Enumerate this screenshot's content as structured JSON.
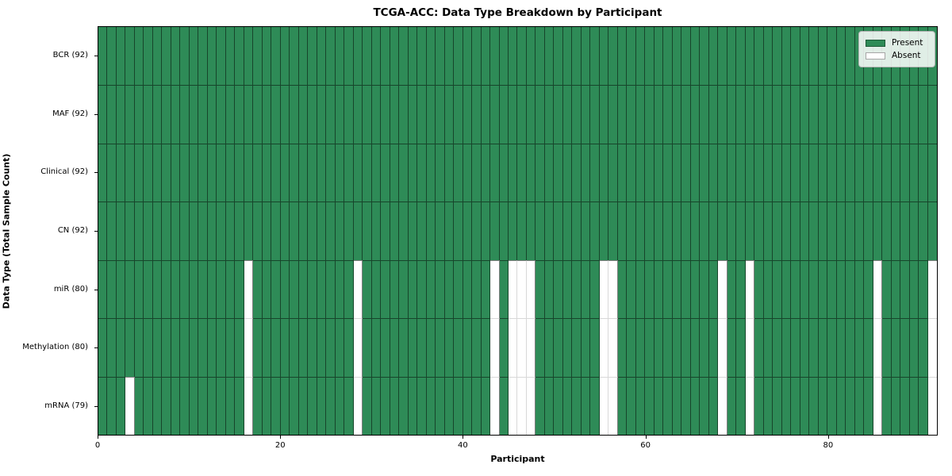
{
  "chart_data": {
    "type": "heatmap",
    "title": "TCGA-ACC: Data Type Breakdown by Participant",
    "xlabel": "Participant",
    "ylabel": "Data Type (Total Sample Count)",
    "n_participants": 92,
    "x_range": [
      0,
      92
    ],
    "x_ticks": [
      0,
      20,
      40,
      60,
      80
    ],
    "grid": true,
    "legend_position": "upper right",
    "legend": [
      {
        "label": "Present",
        "color": "#2e8b57"
      },
      {
        "label": "Absent",
        "color": "#ffffff"
      }
    ],
    "colors": {
      "present": "#2e8b57",
      "absent": "#ffffff",
      "grid_dark": "rgba(0,0,0,0.5)",
      "grid_light": "#d8d8d8"
    },
    "rows": [
      {
        "label": "BCR (92)",
        "present_count": 92,
        "absent_columns": []
      },
      {
        "label": "MAF (92)",
        "present_count": 92,
        "absent_columns": []
      },
      {
        "label": "Clinical (92)",
        "present_count": 92,
        "absent_columns": []
      },
      {
        "label": "CN (92)",
        "present_count": 92,
        "absent_columns": []
      },
      {
        "label": "miR (80)",
        "present_count": 80,
        "absent_columns": [
          16,
          28,
          43,
          45,
          46,
          47,
          55,
          56,
          68,
          71,
          85,
          91
        ]
      },
      {
        "label": "Methylation (80)",
        "present_count": 80,
        "absent_columns": [
          16,
          28,
          43,
          45,
          46,
          47,
          55,
          56,
          68,
          71,
          85,
          91
        ]
      },
      {
        "label": "mRNA (79)",
        "present_count": 79,
        "absent_columns": [
          3,
          16,
          28,
          43,
          45,
          46,
          47,
          55,
          56,
          68,
          71,
          85,
          91
        ]
      }
    ]
  }
}
